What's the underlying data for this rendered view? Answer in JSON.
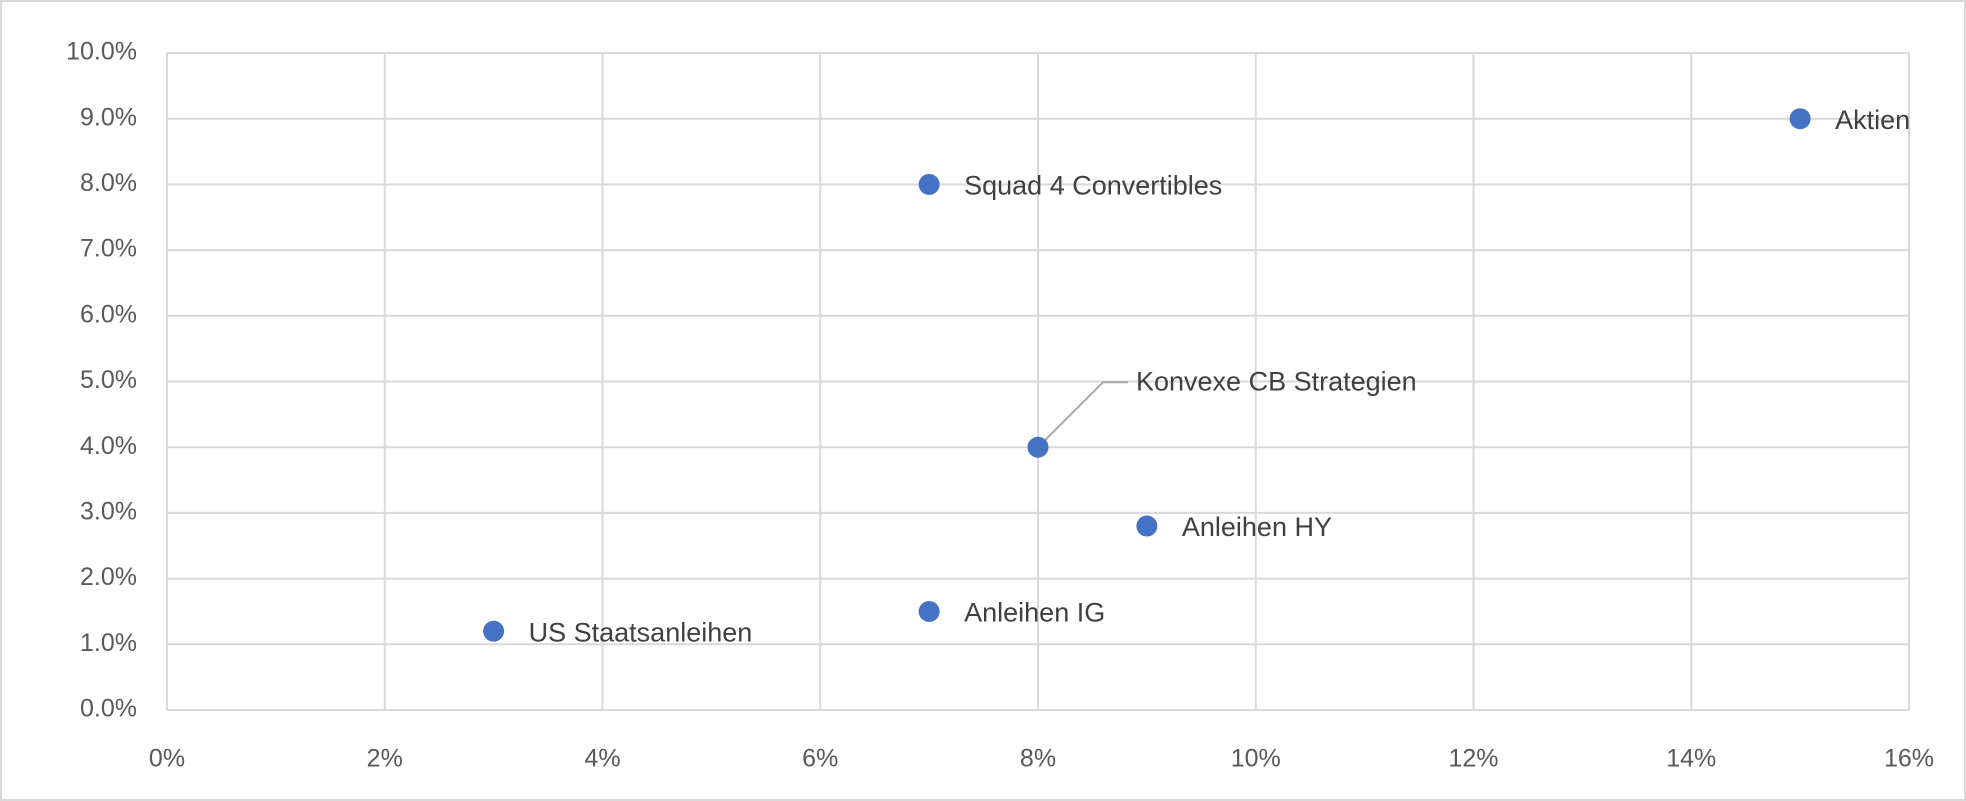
{
  "chart_data": {
    "type": "scatter",
    "labels": [
      "US Staatsanleihen",
      "Anleihen IG",
      "Anleihen HY",
      "Konvexe CB Strategien",
      "Squad 4 Convertibles",
      "Aktien"
    ],
    "x": [
      3,
      7,
      9,
      8,
      7,
      15
    ],
    "values": [
      1.2,
      1.5,
      2.8,
      4.0,
      8.0,
      9.0
    ],
    "color": "#4472c4",
    "xlim": [
      0,
      16
    ],
    "xticks": [
      {
        "value": 0,
        "label": "0%"
      },
      {
        "value": 2,
        "label": "2%"
      },
      {
        "value": 4,
        "label": "4%"
      },
      {
        "value": 6,
        "label": "6%"
      },
      {
        "value": 8,
        "label": "8%"
      },
      {
        "value": 10,
        "label": "10%"
      },
      {
        "value": 12,
        "label": "12%"
      },
      {
        "value": 14,
        "label": "14%"
      },
      {
        "value": 16,
        "label": "16%"
      }
    ],
    "ylim": [
      0,
      10
    ],
    "yticks": [
      {
        "value": 0,
        "label": "0.0%"
      },
      {
        "value": 1,
        "label": "1.0%"
      },
      {
        "value": 2,
        "label": "2.0%"
      },
      {
        "value": 3,
        "label": "3.0%"
      },
      {
        "value": 4,
        "label": "4.0%"
      },
      {
        "value": 5,
        "label": "5.0%"
      },
      {
        "value": 6,
        "label": "6.0%"
      },
      {
        "value": 7,
        "label": "7.0%"
      },
      {
        "value": 8,
        "label": "8.0%"
      },
      {
        "value": 9,
        "label": "9.0%"
      },
      {
        "value": 10,
        "label": "10.0%"
      }
    ],
    "grid": true
  }
}
